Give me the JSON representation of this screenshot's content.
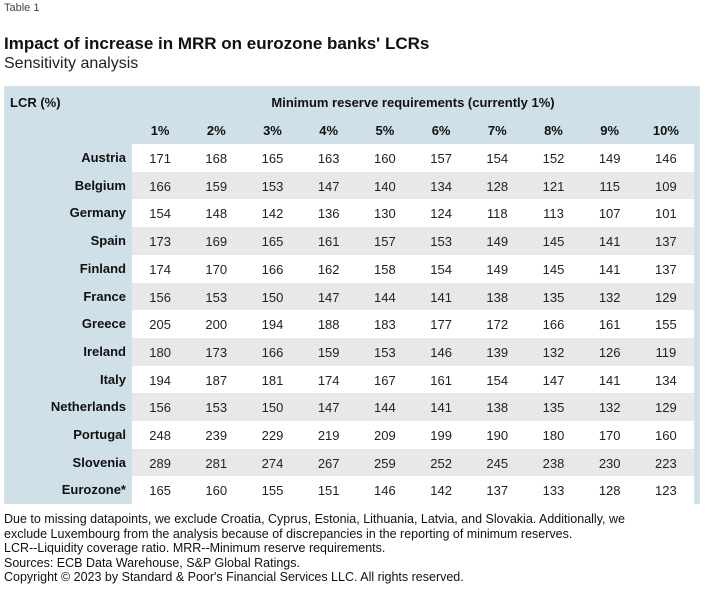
{
  "table_label": "Table 1",
  "title": "Impact of increase in MRR on eurozone banks' LCRs",
  "subtitle": "Sensitivity analysis",
  "table": {
    "stub_header": "LCR (%)",
    "group_header": "Minimum reserve requirements (currently 1%)",
    "columns": [
      "1%",
      "2%",
      "3%",
      "4%",
      "5%",
      "6%",
      "7%",
      "8%",
      "9%",
      "10%"
    ],
    "rows": [
      {
        "label": "Austria",
        "values": [
          "171",
          "168",
          "165",
          "163",
          "160",
          "157",
          "154",
          "152",
          "149",
          "146"
        ]
      },
      {
        "label": "Belgium",
        "values": [
          "166",
          "159",
          "153",
          "147",
          "140",
          "134",
          "128",
          "121",
          "115",
          "109"
        ]
      },
      {
        "label": "Germany",
        "values": [
          "154",
          "148",
          "142",
          "136",
          "130",
          "124",
          "118",
          "113",
          "107",
          "101"
        ]
      },
      {
        "label": "Spain",
        "values": [
          "173",
          "169",
          "165",
          "161",
          "157",
          "153",
          "149",
          "145",
          "141",
          "137"
        ]
      },
      {
        "label": "Finland",
        "values": [
          "174",
          "170",
          "166",
          "162",
          "158",
          "154",
          "149",
          "145",
          "141",
          "137"
        ]
      },
      {
        "label": "France",
        "values": [
          "156",
          "153",
          "150",
          "147",
          "144",
          "141",
          "138",
          "135",
          "132",
          "129"
        ]
      },
      {
        "label": "Greece",
        "values": [
          "205",
          "200",
          "194",
          "188",
          "183",
          "177",
          "172",
          "166",
          "161",
          "155"
        ]
      },
      {
        "label": "Ireland",
        "values": [
          "180",
          "173",
          "166",
          "159",
          "153",
          "146",
          "139",
          "132",
          "126",
          "119"
        ]
      },
      {
        "label": "Italy",
        "values": [
          "194",
          "187",
          "181",
          "174",
          "167",
          "161",
          "154",
          "147",
          "141",
          "134"
        ]
      },
      {
        "label": "Netherlands",
        "values": [
          "156",
          "153",
          "150",
          "147",
          "144",
          "141",
          "138",
          "135",
          "132",
          "129"
        ]
      },
      {
        "label": "Portugal",
        "values": [
          "248",
          "239",
          "229",
          "219",
          "209",
          "199",
          "190",
          "180",
          "170",
          "160"
        ]
      },
      {
        "label": "Slovenia",
        "values": [
          "289",
          "281",
          "274",
          "267",
          "259",
          "252",
          "245",
          "238",
          "230",
          "223"
        ]
      },
      {
        "label": "Eurozone*",
        "values": [
          "165",
          "160",
          "155",
          "151",
          "146",
          "142",
          "137",
          "133",
          "128",
          "123"
        ]
      }
    ]
  },
  "notes": [
    "Due to missing datapoints, we exclude Croatia, Cyprus, Estonia, Lithuania, Latvia, and Slovakia. Additionally, we",
    "exclude Luxembourg from the analysis because of discrepancies in the reporting of minimum reserves.",
    "LCR--Liquidity coverage ratio. MRR--Minimum reserve requirements.",
    "Sources: ECB Data Warehouse, S&P Global Ratings.",
    "Copyright © 2023 by Standard & Poor's Financial Services LLC. All rights reserved."
  ]
}
